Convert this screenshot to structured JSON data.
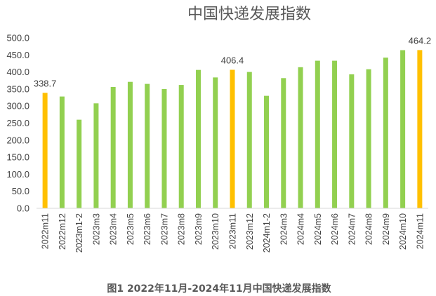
{
  "chart_data": {
    "type": "bar",
    "title": "中国快递发展指数",
    "caption": "图1 2022年11月-2024年11月中国快递发展指数",
    "categories": [
      "2022m11",
      "2022m12",
      "2023m1-2",
      "2023m3",
      "2023m4",
      "2023m5",
      "2023m6",
      "2023m7",
      "2023m8",
      "2023m9",
      "2023m10",
      "2023m11",
      "2023m12",
      "2024m1-2",
      "2024m3",
      "2024m4",
      "2024m5",
      "2024m6",
      "2024m7",
      "2024m8",
      "2024m9",
      "2024m10",
      "2024m11"
    ],
    "values": [
      338.7,
      328,
      260,
      308,
      356,
      371,
      365,
      350,
      362,
      406,
      384,
      406.4,
      400,
      330,
      382,
      414,
      433,
      433,
      393,
      408,
      442,
      464,
      464.2
    ],
    "highlight_indices": [
      0,
      11,
      22
    ],
    "data_labels": [
      {
        "index": 0,
        "text": "338.7"
      },
      {
        "index": 11,
        "text": "406.4"
      },
      {
        "index": 22,
        "text": "464.2"
      }
    ],
    "ylim": [
      0,
      500
    ],
    "y_ticks": [
      "0.0",
      "50.0",
      "100.0",
      "150.0",
      "200.0",
      "250.0",
      "300.0",
      "350.0",
      "400.0",
      "450.0",
      "500.0"
    ],
    "y_tick_values": [
      0,
      50,
      100,
      150,
      200,
      250,
      300,
      350,
      400,
      450,
      500
    ],
    "grid": false,
    "colors": {
      "default": "#92d050",
      "highlight": "#ffc000",
      "text": "#404040",
      "title": "#595959"
    }
  }
}
